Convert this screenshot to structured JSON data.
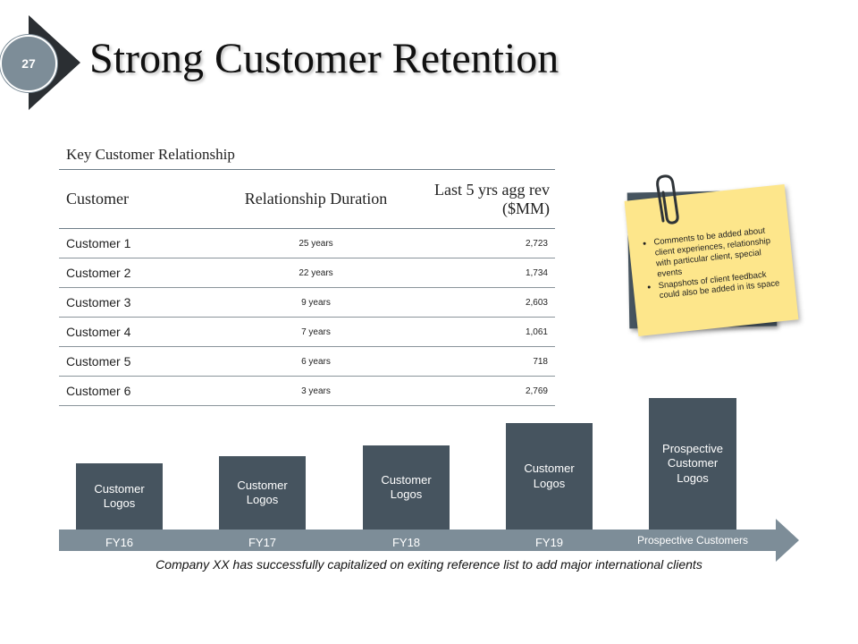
{
  "slide": {
    "number": "27",
    "title": "Strong Customer Retention"
  },
  "table": {
    "caption": "Key Customer Relationship",
    "headers": [
      "Customer",
      "Relationship Duration",
      "Last 5 yrs agg rev ($MM)"
    ],
    "rows": [
      [
        "Customer 1",
        "25 years",
        "2,723"
      ],
      [
        "Customer 2",
        "22 years",
        "1,734"
      ],
      [
        "Customer 3",
        "9 years",
        "2,603"
      ],
      [
        "Customer 4",
        "7 years",
        "1,061"
      ],
      [
        "Customer 5",
        "6 years",
        "718"
      ],
      [
        "Customer 6",
        "3 years",
        "2,769"
      ]
    ]
  },
  "note": {
    "bullets": [
      "Comments to be added about client experiences, relationship with particular client, special events",
      "Snapshots of client feedback could also be added in its space"
    ]
  },
  "timeline": {
    "bars": [
      {
        "label": "Customer Logos",
        "year": "FY16"
      },
      {
        "label": "Customer Logos",
        "year": "FY17"
      },
      {
        "label": "Customer Logos",
        "year": "FY18"
      },
      {
        "label": "Customer Logos",
        "year": "FY19"
      },
      {
        "label": "Prospective Customer Logos",
        "year": ""
      }
    ],
    "prospective_label": "Prospective Customers"
  },
  "footer": "Company XX has successfully capitalized on exiting reference list to add major international clients",
  "colors": {
    "dark": "#46545f",
    "slate": "#7d8d98",
    "note": "#fde68b",
    "arrow_dark": "#2b2f33"
  }
}
